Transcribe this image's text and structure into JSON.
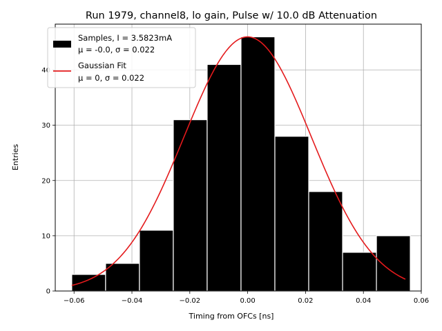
{
  "chart_data": {
    "type": "bar",
    "title": "Run 1979, channel8, lo gain, Pulse w/ 10.0 dB Attenuation",
    "xlabel": "Timing from OFCs [ns]",
    "ylabel": "Entries",
    "xlim": [
      -0.0665,
      0.06
    ],
    "ylim": [
      0,
      48.3
    ],
    "grid": true,
    "legend_position": "top-left",
    "x_ticks": [
      {
        "value": -0.06,
        "label": "−0.06"
      },
      {
        "value": -0.04,
        "label": "−0.04"
      },
      {
        "value": -0.02,
        "label": "−0.02"
      },
      {
        "value": 0.0,
        "label": "0.00"
      },
      {
        "value": 0.02,
        "label": "0.02"
      },
      {
        "value": 0.04,
        "label": "0.04"
      },
      {
        "value": 0.06,
        "label": "0.06"
      }
    ],
    "y_ticks": [
      {
        "value": 0,
        "label": "0"
      },
      {
        "value": 10,
        "label": "10"
      },
      {
        "value": 20,
        "label": "20"
      },
      {
        "value": 30,
        "label": "30"
      },
      {
        "value": 40,
        "label": "40"
      }
    ],
    "histogram": {
      "name": "Samples, I = 3.5823mA",
      "stats_label": "μ = -0.0, σ = 0.022",
      "color": "#000000",
      "edge_color": "#ffffff",
      "bin_edges": [
        -0.0608,
        -0.0491,
        -0.0374,
        -0.0257,
        -0.014,
        -0.0023,
        0.0094,
        0.0211,
        0.0328,
        0.0445,
        0.0562
      ],
      "counts": [
        3,
        5,
        11,
        31,
        41,
        46,
        28,
        18,
        7,
        10
      ]
    },
    "fit": {
      "name": "Gaussian Fit",
      "stats_label": "μ = 0, σ = 0.022",
      "color": "#e41a1c",
      "mu": 0.0,
      "sigma": 0.022,
      "amplitude": 46.0,
      "x_range": [
        -0.0608,
        0.0545
      ]
    }
  }
}
